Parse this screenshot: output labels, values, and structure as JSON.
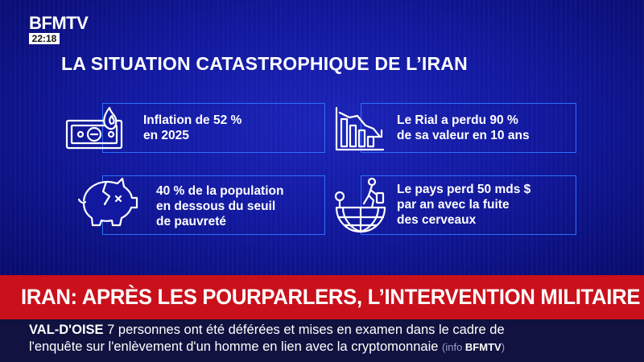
{
  "channel": {
    "logo": "BFMTV",
    "time": "22:18"
  },
  "title": "LA SITUATION CATASTROPHIQUE DE L’IRAN",
  "cards": [
    {
      "icon": "banknote-fire-icon",
      "line1": "Inflation de 52 %",
      "line2": "en 2025",
      "line3": ""
    },
    {
      "icon": "falling-chart-icon",
      "line1": "Le Rial a perdu 90 %",
      "line2": "de sa valeur en 10 ans",
      "line3": ""
    },
    {
      "icon": "broken-piggy-bank-icon",
      "line1": "40 % de la population",
      "line2": "en dessous du seuil",
      "line3": "de pauvreté"
    },
    {
      "icon": "globe-departure-icon",
      "line1": "Le pays perd 50 mds $",
      "line2": "par an avec la fuite",
      "line3": "des cerveaux"
    }
  ],
  "banner": "IRAN: APRÈS LES POURPARLERS, L’INTERVENTION MILITAIRE ?",
  "ticker": {
    "tag": "VAL-D'OISE",
    "line1": "7 personnes ont été déférées et mises en examen dans le cadre de",
    "line2": "l'enquête sur l'enlèvement d'un homme en lien avec la cryptomonnaie",
    "source_prefix": "(info ",
    "source_brand": "BFMTV",
    "source_suffix": ")"
  },
  "colors": {
    "background": "#1219a0",
    "card_border": "#2f6fff",
    "banner": "#c9101b",
    "ticker": "#11123f"
  }
}
